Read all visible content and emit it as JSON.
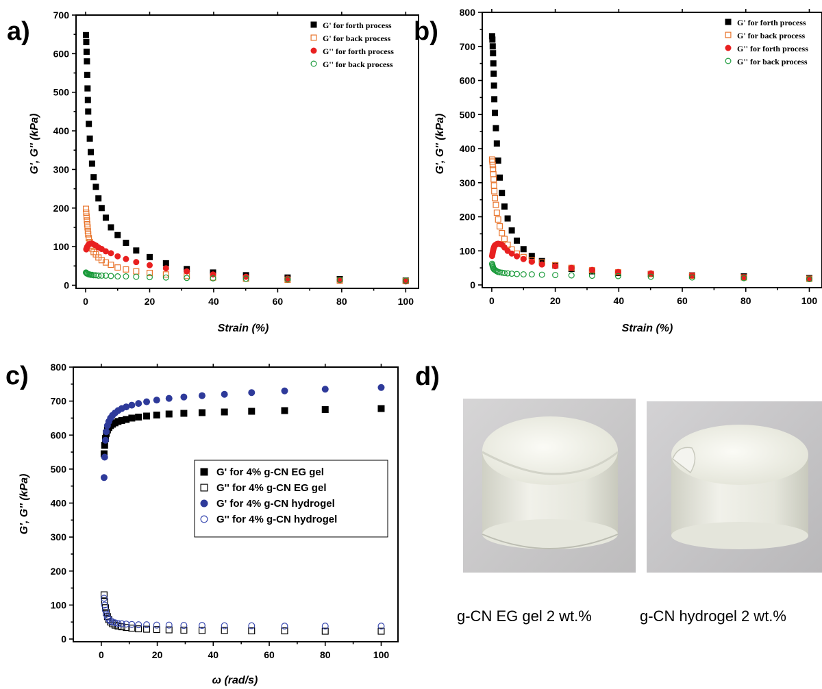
{
  "chart_data": [
    {
      "panel": "a)",
      "type": "scatter",
      "xlabel": "Strain (%)",
      "ylabel": "G', G'' (kPa)",
      "xlim": [
        -3,
        104
      ],
      "ylim": [
        -8,
        700
      ],
      "xticks": [
        0,
        20,
        40,
        60,
        80,
        100
      ],
      "yticks": [
        0,
        100,
        200,
        300,
        400,
        500,
        600,
        700
      ],
      "legend_position": "top-right",
      "series": [
        {
          "name": "G' for forth process",
          "color": "#000000",
          "marker": "square-filled",
          "x": [
            0.1,
            0.2,
            0.3,
            0.4,
            0.5,
            0.6,
            0.7,
            0.8,
            1.0,
            1.3,
            1.6,
            2.0,
            2.5,
            3.2,
            4.0,
            5.0,
            6.3,
            7.9,
            10,
            12.6,
            15.8,
            20,
            25.1,
            31.6,
            39.8,
            50.1,
            63.1,
            79.4,
            100
          ],
          "y": [
            648,
            630,
            605,
            580,
            545,
            510,
            480,
            450,
            418,
            380,
            345,
            315,
            280,
            255,
            225,
            200,
            175,
            150,
            130,
            110,
            90,
            73,
            57,
            42,
            33,
            26,
            20,
            16,
            12
          ]
        },
        {
          "name": "G' for back process",
          "color": "#e8732a",
          "marker": "square-open",
          "x": [
            0.1,
            0.2,
            0.3,
            0.4,
            0.5,
            0.6,
            0.7,
            0.8,
            1.0,
            1.3,
            1.6,
            2.0,
            2.5,
            3.2,
            4.0,
            5.0,
            6.3,
            7.9,
            10,
            12.6,
            15.8,
            20,
            25.1,
            31.6,
            39.8,
            50.1,
            63.1,
            79.4,
            100
          ],
          "y": [
            198,
            188,
            178,
            168,
            158,
            150,
            140,
            132,
            122,
            112,
            103,
            95,
            86,
            80,
            72,
            65,
            59,
            53,
            46,
            41,
            36,
            32,
            28,
            24,
            20,
            17,
            14,
            12,
            11
          ]
        },
        {
          "name": "G'' for forth process",
          "color": "#e82020",
          "marker": "circle-filled",
          "x": [
            0.2,
            0.3,
            0.5,
            0.8,
            1.0,
            1.3,
            1.6,
            2.0,
            2.5,
            3.2,
            4.0,
            5.0,
            6.3,
            7.9,
            10,
            12.6,
            15.8,
            20,
            25.1,
            31.6,
            39.8,
            50.1,
            63.1,
            79.4,
            100
          ],
          "y": [
            93,
            96,
            100,
            104,
            106,
            107,
            108,
            108,
            106,
            103,
            98,
            94,
            88,
            83,
            75,
            68,
            60,
            52,
            44,
            36,
            28,
            22,
            17,
            13,
            10
          ]
        },
        {
          "name": "G'' for back process",
          "color": "#1a9a3a",
          "marker": "circle-open",
          "x": [
            0.1,
            0.2,
            0.3,
            0.5,
            0.8,
            1.0,
            1.3,
            1.6,
            2.0,
            2.5,
            3.2,
            4.0,
            5.0,
            6.3,
            7.9,
            10,
            12.6,
            15.8,
            20,
            25.1,
            31.6,
            39.8,
            50.1,
            63.1,
            79.4,
            100
          ],
          "y": [
            33,
            32,
            31,
            30,
            29,
            28,
            28,
            27,
            27,
            26,
            26,
            25,
            25,
            25,
            24,
            23,
            23,
            22,
            21,
            20,
            19,
            18,
            17,
            15,
            14,
            12
          ]
        }
      ]
    },
    {
      "panel": "b)",
      "type": "scatter",
      "xlabel": "Strain (%)",
      "ylabel": "G', G'' (kPa)",
      "xlim": [
        -3,
        104
      ],
      "ylim": [
        -8,
        800
      ],
      "xticks": [
        0,
        20,
        40,
        60,
        80,
        100
      ],
      "yticks": [
        0,
        100,
        200,
        300,
        400,
        500,
        600,
        700,
        800
      ],
      "legend_position": "top-right",
      "series": [
        {
          "name": "G' for forth process",
          "color": "#000000",
          "marker": "square-filled",
          "x": [
            0.1,
            0.2,
            0.3,
            0.4,
            0.5,
            0.6,
            0.7,
            0.8,
            1.0,
            1.3,
            1.6,
            2.0,
            2.5,
            3.2,
            4.0,
            5.0,
            6.3,
            7.9,
            10,
            12.6,
            15.8,
            20,
            25.1,
            31.6,
            39.8,
            50.1,
            63.1,
            79.4,
            100
          ],
          "y": [
            730,
            720,
            700,
            680,
            650,
            620,
            585,
            545,
            505,
            460,
            415,
            365,
            315,
            270,
            230,
            195,
            160,
            130,
            105,
            85,
            70,
            57,
            47,
            40,
            35,
            32,
            28,
            25,
            20
          ]
        },
        {
          "name": "G' for back process",
          "color": "#e8732a",
          "marker": "square-open",
          "x": [
            0.1,
            0.2,
            0.3,
            0.4,
            0.5,
            0.6,
            0.7,
            0.8,
            1.0,
            1.3,
            1.6,
            2.0,
            2.5,
            3.2,
            4.0,
            5.0,
            6.3,
            7.9,
            10,
            12.6,
            15.8,
            20,
            25.1,
            31.6,
            39.8,
            50.1,
            63.1,
            79.4,
            100
          ],
          "y": [
            368,
            362,
            352,
            340,
            325,
            310,
            292,
            275,
            255,
            235,
            212,
            192,
            172,
            152,
            135,
            118,
            104,
            92,
            82,
            73,
            66,
            58,
            50,
            43,
            37,
            32,
            27,
            22,
            18
          ]
        },
        {
          "name": "G'' for forth process",
          "color": "#e82020",
          "marker": "circle-filled",
          "x": [
            0.1,
            0.2,
            0.3,
            0.4,
            0.5,
            0.6,
            0.7,
            0.8,
            1.0,
            1.3,
            1.6,
            2.0,
            2.5,
            3.2,
            4.0,
            5.0,
            6.3,
            7.9,
            10,
            12.6,
            15.8,
            20,
            25.1,
            31.6,
            39.8,
            50.1,
            63.1,
            79.4,
            100
          ],
          "y": [
            85,
            90,
            95,
            100,
            104,
            108,
            110,
            113,
            116,
            118,
            120,
            121,
            120,
            118,
            110,
            100,
            92,
            84,
            76,
            68,
            60,
            55,
            50,
            44,
            38,
            34,
            28,
            23,
            18
          ]
        },
        {
          "name": "G'' for back process",
          "color": "#1a9a3a",
          "marker": "circle-open",
          "x": [
            0.1,
            0.2,
            0.3,
            0.4,
            0.5,
            0.7,
            1.0,
            1.3,
            1.6,
            2.0,
            2.5,
            3.2,
            4.0,
            5.0,
            6.3,
            7.9,
            10,
            12.6,
            15.8,
            20,
            25.1,
            31.6,
            39.8,
            50.1,
            63.1,
            79.4,
            100
          ],
          "y": [
            62,
            58,
            55,
            52,
            49,
            46,
            44,
            42,
            40,
            38,
            37,
            36,
            35,
            34,
            33,
            32,
            31,
            31,
            30,
            29,
            28,
            27,
            26,
            24,
            22,
            20,
            17
          ]
        }
      ]
    },
    {
      "panel": "c)",
      "type": "scatter",
      "xlabel": "ω (rad/s)",
      "ylabel": "G', G'' (kPa)",
      "xlim": [
        -10,
        106
      ],
      "ylim": [
        -8,
        800
      ],
      "xticks": [
        0,
        20,
        40,
        60,
        80,
        100
      ],
      "yticks": [
        0,
        100,
        200,
        300,
        400,
        500,
        600,
        700,
        800
      ],
      "legend_position": "center-right",
      "series": [
        {
          "name": "G' for 4% g-CN EG gel",
          "color": "#000000",
          "marker": "square-filled",
          "x": [
            1,
            1.2,
            1.5,
            1.8,
            2.2,
            2.7,
            3.3,
            4,
            4.9,
            6,
            7.3,
            8.9,
            10.9,
            13.3,
            16.2,
            19.8,
            24.2,
            29.5,
            36,
            44,
            53.7,
            65.5,
            80,
            100
          ],
          "y": [
            545,
            570,
            590,
            605,
            615,
            622,
            628,
            632,
            636,
            640,
            643,
            646,
            650,
            653,
            656,
            659,
            662,
            664,
            666,
            668,
            670,
            672,
            675,
            678
          ]
        },
        {
          "name": "G'' for 4% g-CN EG gel",
          "color": "#000000",
          "marker": "square-open",
          "x": [
            1,
            1.2,
            1.5,
            1.8,
            2.2,
            2.7,
            3.3,
            4,
            4.9,
            6,
            7.3,
            8.9,
            10.9,
            13.3,
            16.2,
            19.8,
            24.2,
            29.5,
            36,
            44,
            53.7,
            65.5,
            80,
            100
          ],
          "y": [
            130,
            110,
            92,
            78,
            66,
            57,
            50,
            45,
            41,
            38,
            36,
            34,
            32,
            30,
            29,
            28,
            27,
            26,
            25,
            25,
            24,
            24,
            23,
            23
          ]
        },
        {
          "name": "G' for 4% g-CN hydrogel",
          "color": "#2e3a9a",
          "marker": "circle-filled",
          "x": [
            1,
            1.2,
            1.5,
            1.8,
            2.2,
            2.7,
            3.3,
            4,
            4.9,
            6,
            7.3,
            8.9,
            10.9,
            13.3,
            16.2,
            19.8,
            24.2,
            29.5,
            36,
            44,
            53.7,
            65.5,
            80,
            100
          ],
          "y": [
            475,
            535,
            585,
            610,
            628,
            640,
            650,
            658,
            665,
            672,
            678,
            683,
            688,
            693,
            698,
            703,
            708,
            712,
            716,
            720,
            725,
            730,
            735,
            740
          ]
        },
        {
          "name": "G'' for 4% g-CN hydrogel",
          "color": "#3a4ab0",
          "marker": "circle-open",
          "x": [
            1,
            1.2,
            1.5,
            1.8,
            2.2,
            2.7,
            3.3,
            4,
            4.9,
            6,
            7.3,
            8.9,
            10.9,
            13.3,
            16.2,
            19.8,
            24.2,
            29.5,
            36,
            44,
            53.7,
            65.5,
            80,
            100
          ],
          "y": [
            120,
            100,
            85,
            73,
            64,
            58,
            53,
            50,
            48,
            46,
            45,
            44,
            43,
            42,
            42,
            41,
            41,
            40,
            40,
            39,
            39,
            38,
            38,
            38
          ]
        }
      ]
    }
  ],
  "panel_d": {
    "letter": "d)",
    "captions": [
      "g-CN EG gel 2 wt.%",
      "g-CN hydrogel 2 wt.%"
    ]
  }
}
